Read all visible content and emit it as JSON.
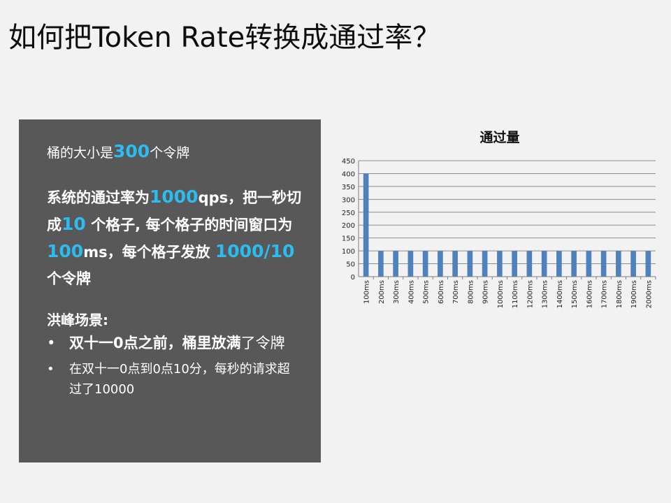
{
  "slide": {
    "title": "如何把Token Rate转换成通过率？"
  },
  "panel": {
    "p1": {
      "before": "桶的大小是",
      "highlight": "300",
      "after": "个令牌"
    },
    "p2": {
      "t1": "系统的通过率为",
      "h1": "1000",
      "t2": "qps，把一秒切成",
      "h2": "10",
      "t3": " 个格子, 每个格子的时间窗口为",
      "h3": "100",
      "t4": "ms，每个格子发放 ",
      "h4": "1000/10",
      "t5": " 个令牌"
    },
    "p3": "洪峰场景:",
    "bullet_marker": "•",
    "bullets": [
      {
        "bold": "双十一0点之前，桶里放满",
        "normal": "了令牌"
      },
      {
        "text": "在双十一0点到0点10分，每秒的请求超过了10000"
      }
    ],
    "colors": {
      "background": "#585858",
      "highlight": "#2bbcf2"
    }
  },
  "chart_data": {
    "type": "bar",
    "title": "通过量",
    "xlabel": "",
    "ylabel": "",
    "ylim": [
      0,
      450
    ],
    "yticks": [
      0,
      50,
      100,
      150,
      200,
      250,
      300,
      350,
      400,
      450
    ],
    "grid": true,
    "categories": [
      "100ms",
      "200ms",
      "300ms",
      "400ms",
      "500ms",
      "600ms",
      "700ms",
      "800ms",
      "900ms",
      "1000ms",
      "1100ms",
      "1200ms",
      "1300ms",
      "1400ms",
      "1500ms",
      "1600ms",
      "1700ms",
      "1800ms",
      "1900ms",
      "2000ms"
    ],
    "values": [
      400,
      100,
      100,
      100,
      100,
      100,
      100,
      100,
      100,
      100,
      100,
      100,
      100,
      100,
      100,
      100,
      100,
      100,
      100,
      100
    ],
    "bar_color": "#4f81bd"
  }
}
